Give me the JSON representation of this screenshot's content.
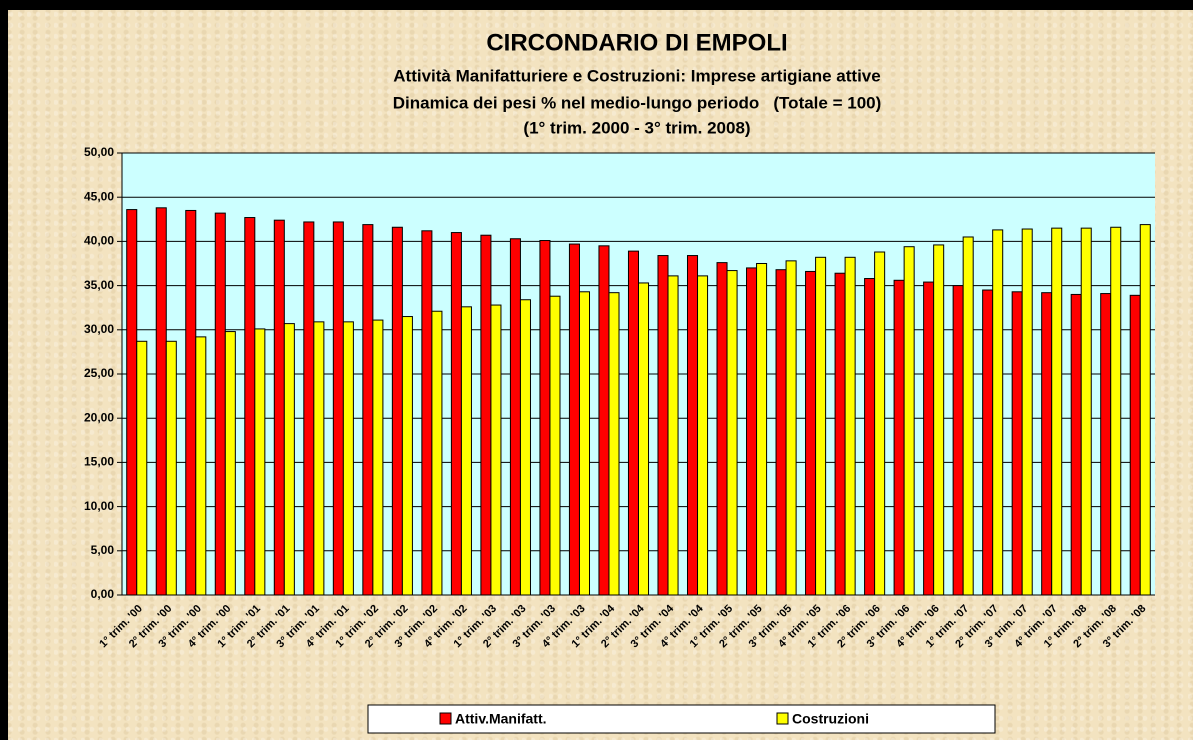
{
  "chart_data": {
    "type": "bar",
    "title": "CIRCONDARIO DI EMPOLI",
    "subtitle": [
      "Attività Manifatturiere e Costruzioni: Imprese artigiane attive",
      "Dinamica dei pesi % nel medio-lungo periodo   (Totale = 100)",
      "(1° trim. 2000 - 3° trim. 2008)"
    ],
    "categories": [
      "1° trim. '00",
      "2° trim. '00",
      "3° trim. '00",
      "4° trim. '00",
      "1° trim. '01",
      "2° trim. '01",
      "3° trim. '01",
      "4° trim. '01",
      "1° trim. '02",
      "2° trim. '02",
      "3° trim. '02",
      "4° trim. '02",
      "1° trim. '03",
      "2° trim. '03",
      "3° trim. '03",
      "4° trim. '03",
      "1° trim. '04",
      "2° trim. '04",
      "3° trim. '04",
      "4° trim. '04",
      "1° trim. '05",
      "2° trim. '05",
      "3° trim. '05",
      "4° trim. '05",
      "1° trim. '06",
      "2° trim. '06",
      "3° trim. '06",
      "4° trim. '06",
      "1° trim. '07",
      "2° trim. '07",
      "3° trim. '07",
      "4° trim. '07",
      "1° trim. '08",
      "2° trim. '08",
      "3° trim. '08"
    ],
    "series": [
      {
        "name": "Attiv.Manifatt.",
        "color": "#ff0000",
        "values": [
          43.6,
          43.8,
          43.5,
          43.2,
          42.7,
          42.4,
          42.2,
          42.2,
          41.9,
          41.6,
          41.2,
          41.0,
          40.7,
          40.3,
          40.1,
          39.7,
          39.5,
          38.9,
          38.4,
          38.4,
          37.6,
          37.0,
          36.8,
          36.6,
          36.4,
          35.8,
          35.6,
          35.4,
          35.0,
          34.5,
          34.3,
          34.2,
          34.0,
          34.1,
          33.9
        ]
      },
      {
        "name": "Costruzioni",
        "color": "#ffff00",
        "values": [
          28.7,
          28.7,
          29.2,
          29.8,
          30.1,
          30.7,
          30.9,
          30.9,
          31.1,
          31.5,
          32.1,
          32.6,
          32.8,
          33.4,
          33.8,
          34.3,
          34.2,
          35.3,
          36.1,
          36.1,
          36.7,
          37.5,
          37.8,
          38.2,
          38.2,
          38.8,
          39.4,
          39.6,
          40.5,
          41.3,
          41.4,
          41.5,
          41.5,
          41.6,
          41.9
        ]
      }
    ],
    "ylim": [
      0,
      50
    ],
    "yticks": [
      {
        "value": 0,
        "label": "0,00"
      },
      {
        "value": 5,
        "label": "5,00"
      },
      {
        "value": 10,
        "label": "10,00"
      },
      {
        "value": 15,
        "label": "15,00"
      },
      {
        "value": 20,
        "label": "20,00"
      },
      {
        "value": 25,
        "label": "25,00"
      },
      {
        "value": 30,
        "label": "30,00"
      },
      {
        "value": 35,
        "label": "35,00"
      },
      {
        "value": 40,
        "label": "40,00"
      },
      {
        "value": 45,
        "label": "45,00"
      },
      {
        "value": 50,
        "label": "50,00"
      }
    ],
    "grid": true,
    "plot_background": "#ccffff",
    "legend": "bottom"
  }
}
